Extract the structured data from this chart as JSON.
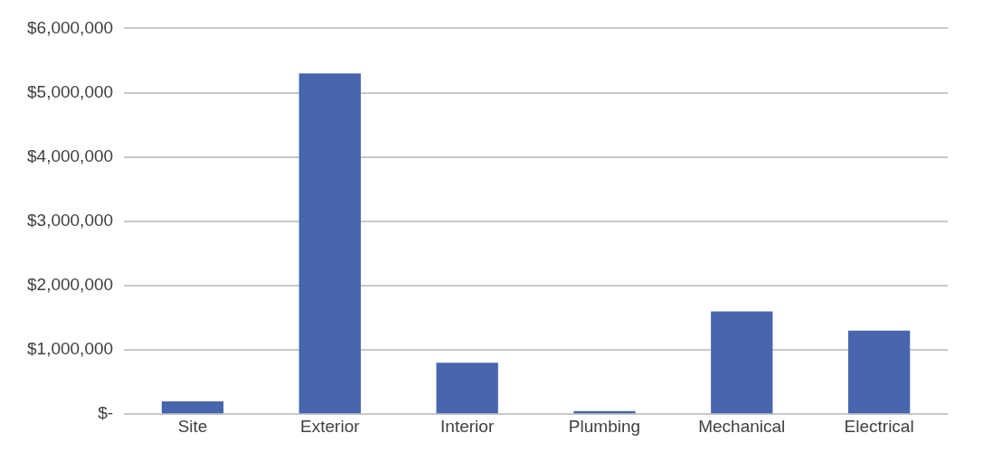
{
  "chart_data": {
    "type": "bar",
    "categories": [
      "Site",
      "Exterior",
      "Interior",
      "Plumbing",
      "Mechanical",
      "Electrical"
    ],
    "values": [
      200000,
      5300000,
      800000,
      50000,
      1600000,
      1300000
    ],
    "color": "#4866ae",
    "ylim": [
      0,
      6000000
    ],
    "yticks": [
      {
        "value": 0,
        "label": "$-"
      },
      {
        "value": 1000000,
        "label": "$1,000,000"
      },
      {
        "value": 2000000,
        "label": "$2,000,000"
      },
      {
        "value": 3000000,
        "label": "$3,000,000"
      },
      {
        "value": 4000000,
        "label": "$4,000,000"
      },
      {
        "value": 5000000,
        "label": "$5,000,000"
      },
      {
        "value": 6000000,
        "label": "$6,000,000"
      }
    ],
    "grid": "y",
    "legend": false
  }
}
